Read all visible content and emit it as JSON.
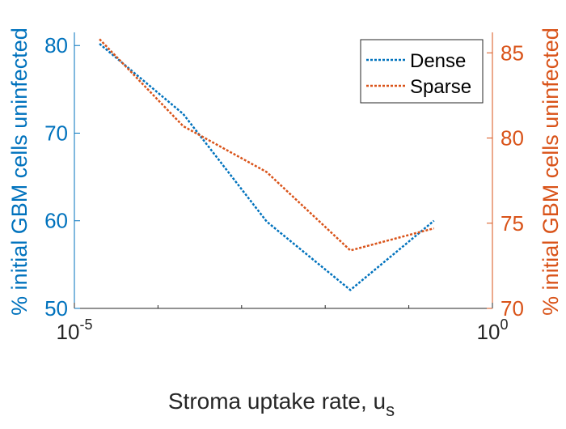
{
  "chart_data": {
    "type": "line",
    "xlabel": "Stroma uptake rate, u",
    "xlabel_subscript": "s",
    "x_scale": "log",
    "xlim": [
      1e-05,
      1
    ],
    "x_ticks": [
      {
        "value": 1e-05,
        "base": "10",
        "exp": "-5"
      },
      {
        "value": 1,
        "base": "10",
        "exp": "0"
      }
    ],
    "y_left": {
      "label": "% initial GBM cells uninfected",
      "lim": [
        50,
        81.5
      ],
      "ticks": [
        50,
        60,
        70,
        80
      ],
      "color": "#0072BD"
    },
    "y_right": {
      "label": "% initial GBM cells uninfected",
      "lim": [
        70,
        86.2
      ],
      "ticks": [
        70,
        75,
        80,
        85
      ],
      "color": "#D95319"
    },
    "x": [
      2e-05,
      0.0002,
      0.002,
      0.02,
      0.2
    ],
    "series": [
      {
        "name": "Dense",
        "axis": "left",
        "color": "#0072BD",
        "values": [
          80.2,
          72.2,
          59.9,
          52.1,
          60.0
        ]
      },
      {
        "name": "Sparse",
        "axis": "right",
        "color": "#D95319",
        "values": [
          85.8,
          80.7,
          78.0,
          73.4,
          74.7
        ]
      }
    ],
    "legend_position": "top-right",
    "grid": false
  }
}
